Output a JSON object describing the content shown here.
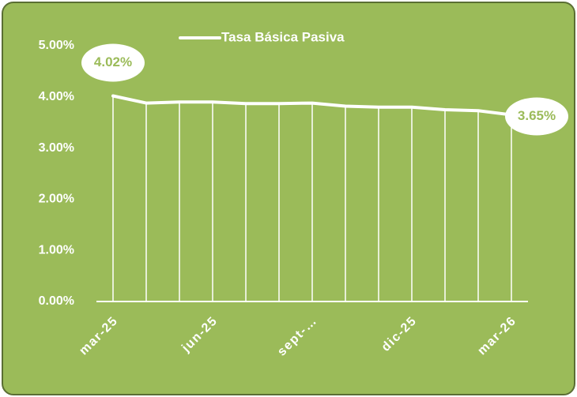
{
  "chart_data": {
    "type": "line",
    "categories": [
      "mar-25",
      null,
      null,
      "jun-25",
      null,
      null,
      "sept-…",
      null,
      null,
      "dic-25",
      null,
      null,
      "mar-26"
    ],
    "series": [
      {
        "name": "Tasa Básica Pasiva",
        "color": "#ffffff",
        "values": [
          4.02,
          3.88,
          3.9,
          3.9,
          3.87,
          3.87,
          3.88,
          3.82,
          3.8,
          3.8,
          3.75,
          3.73,
          3.65
        ],
        "value_labels": [
          "4.02%",
          null,
          null,
          null,
          null,
          null,
          null,
          null,
          null,
          null,
          null,
          null,
          "3.65%"
        ]
      }
    ],
    "ylim": [
      0,
      5
    ],
    "yticks": [
      {
        "value": 0,
        "label": "0.00%"
      },
      {
        "value": 1,
        "label": "1.00%"
      },
      {
        "value": 2,
        "label": "2.00%"
      },
      {
        "value": 3,
        "label": "3.00%"
      },
      {
        "value": 4,
        "label": "4.00%"
      },
      {
        "value": 5,
        "label": "5.00%"
      }
    ],
    "drop_lines": true,
    "legend": "top"
  }
}
